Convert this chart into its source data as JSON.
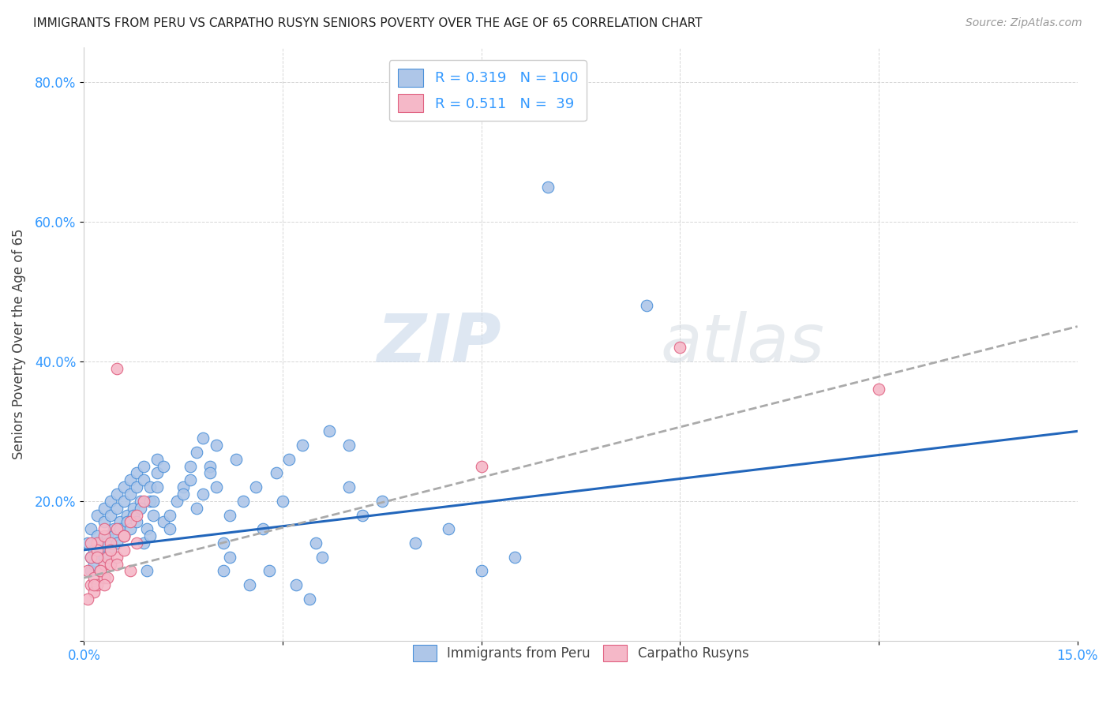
{
  "title": "IMMIGRANTS FROM PERU VS CARPATHO RUSYN SENIORS POVERTY OVER THE AGE OF 65 CORRELATION CHART",
  "source": "Source: ZipAtlas.com",
  "ylabel": "Seniors Poverty Over the Age of 65",
  "xlim": [
    0.0,
    0.15
  ],
  "ylim": [
    0.0,
    0.85
  ],
  "xtick_positions": [
    0.0,
    0.03,
    0.06,
    0.09,
    0.12,
    0.15
  ],
  "xticklabels": [
    "0.0%",
    "",
    "",
    "",
    "",
    "15.0%"
  ],
  "ytick_positions": [
    0.0,
    0.2,
    0.4,
    0.6,
    0.8
  ],
  "yticklabels": [
    "",
    "20.0%",
    "40.0%",
    "60.0%",
    "80.0%"
  ],
  "blue_fill": "#aec6e8",
  "blue_edge": "#4a90d9",
  "pink_fill": "#f5b8c8",
  "pink_edge": "#e06080",
  "blue_line_color": "#2266bb",
  "rusyn_line_color": "#aaaaaa",
  "tick_label_color": "#3399ff",
  "watermark_color": "#e0e8f0",
  "peru_x": [
    0.0005,
    0.001,
    0.001,
    0.0015,
    0.001,
    0.002,
    0.0015,
    0.002,
    0.0025,
    0.002,
    0.003,
    0.0025,
    0.003,
    0.0035,
    0.003,
    0.004,
    0.0035,
    0.004,
    0.0045,
    0.004,
    0.005,
    0.0045,
    0.005,
    0.0055,
    0.005,
    0.006,
    0.0055,
    0.006,
    0.0065,
    0.006,
    0.007,
    0.0065,
    0.007,
    0.0075,
    0.007,
    0.008,
    0.0075,
    0.008,
    0.0085,
    0.008,
    0.009,
    0.0085,
    0.009,
    0.0095,
    0.009,
    0.01,
    0.0095,
    0.01,
    0.0105,
    0.01,
    0.011,
    0.0105,
    0.011,
    0.012,
    0.011,
    0.013,
    0.012,
    0.014,
    0.013,
    0.015,
    0.016,
    0.015,
    0.017,
    0.016,
    0.018,
    0.017,
    0.019,
    0.018,
    0.02,
    0.019,
    0.021,
    0.02,
    0.022,
    0.021,
    0.023,
    0.022,
    0.025,
    0.024,
    0.027,
    0.026,
    0.029,
    0.028,
    0.031,
    0.03,
    0.033,
    0.032,
    0.035,
    0.034,
    0.037,
    0.036,
    0.04,
    0.042,
    0.045,
    0.05,
    0.055,
    0.07,
    0.085,
    0.06,
    0.065,
    0.04
  ],
  "peru_y": [
    0.14,
    0.12,
    0.16,
    0.13,
    0.1,
    0.15,
    0.11,
    0.18,
    0.14,
    0.12,
    0.17,
    0.13,
    0.19,
    0.15,
    0.12,
    0.18,
    0.14,
    0.2,
    0.16,
    0.13,
    0.19,
    0.15,
    0.21,
    0.17,
    0.14,
    0.2,
    0.16,
    0.22,
    0.18,
    0.15,
    0.21,
    0.17,
    0.23,
    0.19,
    0.16,
    0.22,
    0.18,
    0.24,
    0.2,
    0.17,
    0.23,
    0.19,
    0.25,
    0.1,
    0.14,
    0.2,
    0.16,
    0.22,
    0.18,
    0.15,
    0.24,
    0.2,
    0.26,
    0.17,
    0.22,
    0.18,
    0.25,
    0.2,
    0.16,
    0.22,
    0.25,
    0.21,
    0.27,
    0.23,
    0.29,
    0.19,
    0.25,
    0.21,
    0.28,
    0.24,
    0.1,
    0.22,
    0.12,
    0.14,
    0.26,
    0.18,
    0.08,
    0.2,
    0.16,
    0.22,
    0.24,
    0.1,
    0.26,
    0.2,
    0.28,
    0.08,
    0.14,
    0.06,
    0.3,
    0.12,
    0.22,
    0.18,
    0.2,
    0.14,
    0.16,
    0.65,
    0.48,
    0.1,
    0.12,
    0.28
  ],
  "rusyn_x": [
    0.0005,
    0.001,
    0.001,
    0.0015,
    0.002,
    0.0015,
    0.002,
    0.0025,
    0.003,
    0.002,
    0.003,
    0.0035,
    0.004,
    0.003,
    0.005,
    0.004,
    0.006,
    0.005,
    0.007,
    0.006,
    0.0005,
    0.001,
    0.0015,
    0.002,
    0.0025,
    0.003,
    0.0035,
    0.004,
    0.005,
    0.006,
    0.008,
    0.007,
    0.009,
    0.008,
    0.06,
    0.09,
    0.12,
    0.005,
    0.003
  ],
  "rusyn_y": [
    0.1,
    0.08,
    0.12,
    0.09,
    0.14,
    0.07,
    0.13,
    0.1,
    0.15,
    0.08,
    0.11,
    0.12,
    0.14,
    0.09,
    0.16,
    0.11,
    0.15,
    0.12,
    0.17,
    0.13,
    0.06,
    0.14,
    0.08,
    0.12,
    0.1,
    0.16,
    0.09,
    0.13,
    0.11,
    0.15,
    0.18,
    0.1,
    0.2,
    0.14,
    0.25,
    0.42,
    0.36,
    0.39,
    0.08
  ],
  "peru_line_x0": 0.0,
  "peru_line_x1": 0.15,
  "peru_line_y0": 0.13,
  "peru_line_y1": 0.3,
  "rusyn_line_x0": 0.0,
  "rusyn_line_x1": 0.15,
  "rusyn_line_y0": 0.09,
  "rusyn_line_y1": 0.45
}
